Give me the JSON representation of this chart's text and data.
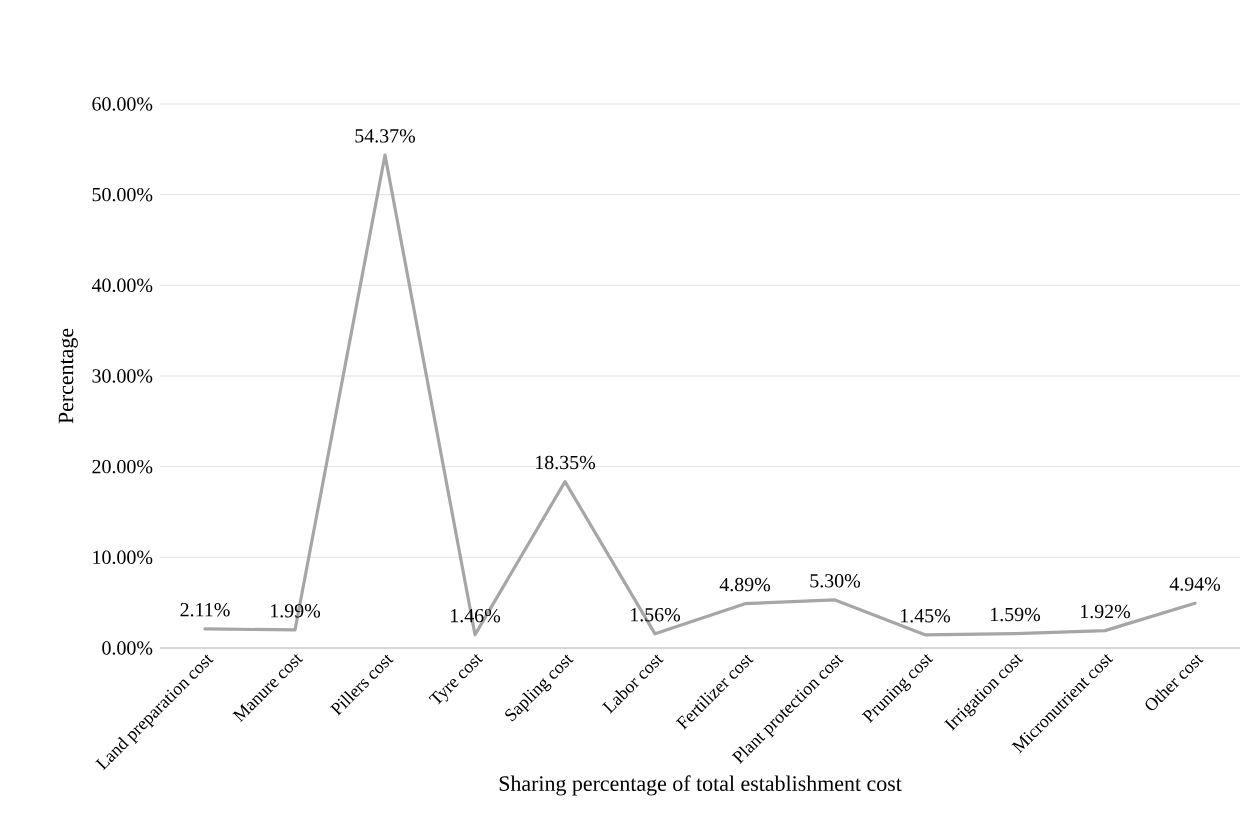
{
  "chart_data": {
    "type": "line",
    "xlabel": "Sharing percentage of total establishment cost",
    "ylabel": "Percentage",
    "categories": [
      "Land preparation cost",
      "Manure cost",
      "Pillers cost",
      "Tyre cost",
      "Sapling cost",
      "Labor cost",
      "Fertilizer cost",
      "Plant protection cost",
      "Pruning cost",
      "Irrigation cost",
      "Micronutrient cost",
      "Other cost"
    ],
    "values": [
      2.11,
      1.99,
      54.37,
      1.46,
      18.35,
      1.56,
      4.89,
      5.3,
      1.45,
      1.59,
      1.92,
      4.94
    ],
    "value_labels": [
      "2.11%",
      "1.99%",
      "54.37%",
      "1.46%",
      "18.35%",
      "1.56%",
      "4.89%",
      "5.30%",
      "1.45%",
      "1.59%",
      "1.92%",
      "4.94%"
    ],
    "color": "#a6a6a6",
    "ylim": [
      0,
      60
    ],
    "yticks": [
      {
        "value": 0,
        "label": "0.00%"
      },
      {
        "value": 10,
        "label": "10.00%"
      },
      {
        "value": 20,
        "label": "20.00%"
      },
      {
        "value": 30,
        "label": "30.00%"
      },
      {
        "value": 40,
        "label": "40.00%"
      },
      {
        "value": 50,
        "label": "50.00%"
      },
      {
        "value": 60,
        "label": "60.00%"
      }
    ],
    "grid": "y",
    "marker": "none",
    "line_style": "solid"
  }
}
